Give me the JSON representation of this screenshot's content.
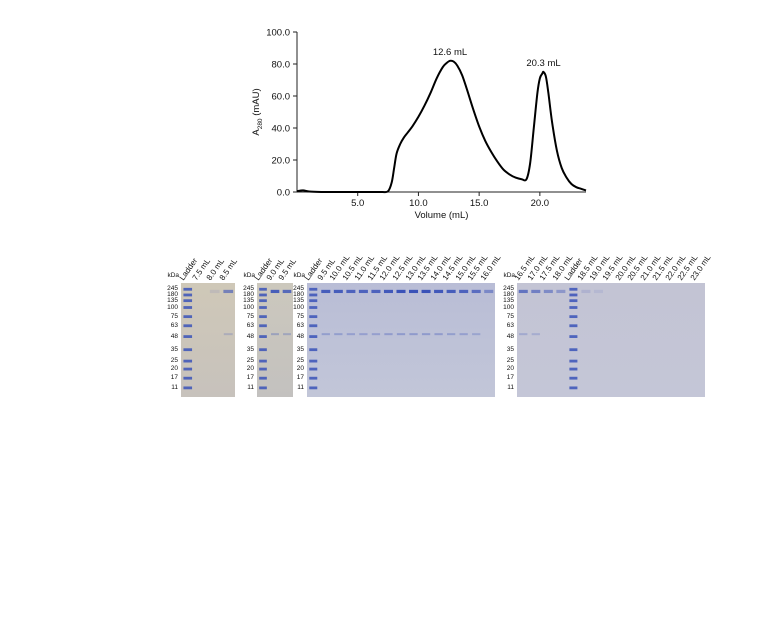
{
  "chart_data": {
    "type": "line",
    "xlabel": "Volume (mL)",
    "ylabel_main": "A",
    "ylabel_sub": "280",
    "ylabel_tail": " (mAU)",
    "xlim": [
      0,
      23.8
    ],
    "ylim": [
      0,
      100
    ],
    "xticks": [
      5.0,
      10.0,
      15.0,
      20.0
    ],
    "xtick_labels": [
      "5.0",
      "10.0",
      "15.0",
      "20.0"
    ],
    "yticks": [
      0,
      20,
      40,
      60,
      80,
      100
    ],
    "ytick_labels": [
      "0.0",
      "20.0",
      "40.0",
      "60.0",
      "80.0",
      "100.0"
    ],
    "series": [
      {
        "x": [
          0,
          0.5,
          1.0,
          2,
          3,
          4,
          5,
          6,
          7,
          7.5,
          7.8,
          8.0,
          8.2,
          8.5,
          8.8,
          9.1,
          9.5,
          10.0,
          10.5,
          11.0,
          11.5,
          12.0,
          12.3,
          12.6,
          12.9,
          13.2,
          13.6,
          14.0,
          14.5,
          15.0,
          15.5,
          16.0,
          16.5,
          17.0,
          17.5,
          18.0,
          18.5,
          18.9,
          19.2,
          19.5,
          19.8,
          20.0,
          20.2,
          20.3,
          20.5,
          20.7,
          21.0,
          21.4,
          21.8,
          22.2,
          22.6,
          23.0,
          23.4,
          23.8
        ],
        "y": [
          0.5,
          1.0,
          0.3,
          0,
          0,
          0,
          0,
          0,
          0,
          0.5,
          6,
          15,
          24,
          30,
          34,
          37,
          41,
          47,
          54,
          62,
          71,
          78,
          80.5,
          82,
          81.5,
          79,
          73,
          64,
          52,
          41,
          32,
          25,
          19,
          14,
          11,
          9,
          8,
          8,
          18,
          40,
          62,
          71,
          74,
          75,
          72,
          62,
          44,
          26,
          15,
          9,
          5,
          3,
          2,
          1
        ]
      }
    ],
    "annotations": [
      {
        "x": 12.6,
        "y": 82,
        "text": "12.6 mL"
      },
      {
        "x": 20.3,
        "y": 75,
        "text": "20.3 mL"
      }
    ]
  },
  "gels": {
    "kda_label": "kDa",
    "ladder_values": [
      "245",
      "180",
      "135",
      "100",
      "75",
      "63",
      "48",
      "35",
      "25",
      "20",
      "17",
      "11"
    ],
    "gel1_lanes": [
      "Ladder",
      "7.5 mL",
      "8.0 mL",
      "8.5 mL"
    ],
    "gel2_lanes": [
      "Ladder",
      "9.0 mL",
      "9.5 mL"
    ],
    "gel3_lanes": [
      "Ladder",
      "9.5 mL",
      "10.0 mL",
      "10.5 mL",
      "11.0 mL",
      "11.5 mL",
      "12.0 mL",
      "12.5 mL",
      "13.0 mL",
      "13.5 mL",
      "14.0 mL",
      "14.5 mL",
      "15.0 mL",
      "15.5 mL",
      "16.0 mL"
    ],
    "gel4_lanes": [
      "16.5 mL",
      "17.0 mL",
      "17.5 mL",
      "18.0 mL",
      "Ladder",
      "18.5 mL",
      "19.0 mL",
      "19.5 mL",
      "20.0 mL",
      "20.5 mL",
      "21.0 mL",
      "21.5 mL",
      "22.0 mL",
      "22.5 mL",
      "23.0 mL"
    ],
    "gel_color": "#c9c8d6",
    "band_color": "#3a52b8"
  }
}
